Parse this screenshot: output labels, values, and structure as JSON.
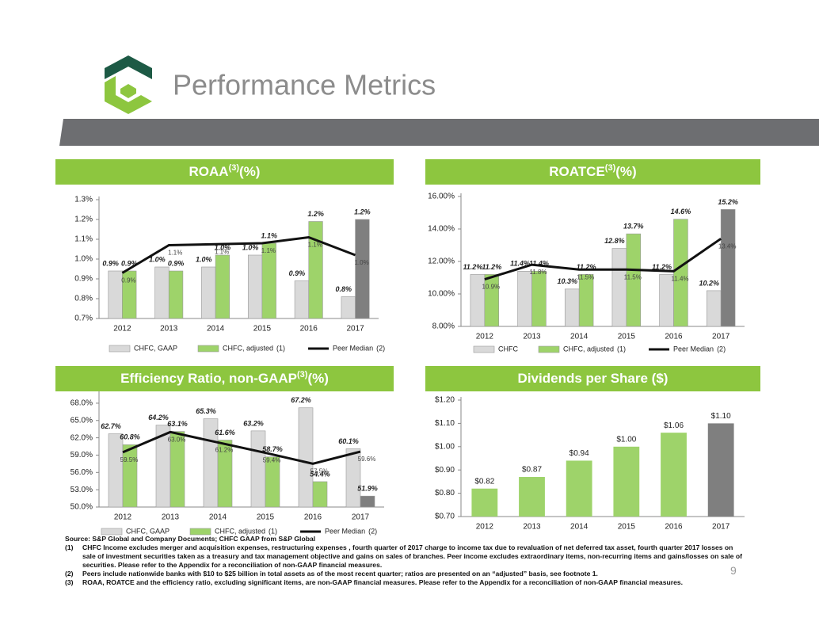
{
  "slide": {
    "title": "Performance Metrics",
    "page_number": "9",
    "source": "Source: S&P Global and Company Documents; CHFC GAAP from S&P Global",
    "footnotes": [
      {
        "marker": "(1)",
        "text": "CHFC Income excludes merger and acquisition expenses, restructuring expenses , fourth quarter of 2017 charge to income tax due to revaluation of net deferred tax asset, fourth quarter 2017 losses on sale of investment securities taken as a treasury and tax management objective and gains on sales of branches. Peer income excludes extraordinary items, non-recurring items and gains/losses on sale of securities. Please refer to the Appendix for a reconciliation of non-GAAP financial measures."
      },
      {
        "marker": "(2)",
        "text": "Peers include nationwide banks with $10 to $25 billion in total assets as of the most recent quarter; ratios are presented on an “adjusted” basis, see footnote 1."
      },
      {
        "marker": "(3)",
        "text": "ROAA, ROATCE and the efficiency ratio, excluding significant items, are non-GAAP financial measures.  Please refer to the Appendix for a reconciliation of non-GAAP financial measures."
      }
    ]
  },
  "chart_data": [
    {
      "type": "bar",
      "title": "ROAA",
      "title_note": "(3)",
      "title_suffix": "(%)",
      "categories": [
        "2012",
        "2013",
        "2014",
        "2015",
        "2016",
        "2017"
      ],
      "ylim": [
        0.7,
        1.3
      ],
      "yticks": [
        {
          "value": 0.7,
          "label": "0.7%"
        },
        {
          "value": 0.8,
          "label": "0.8%"
        },
        {
          "value": 0.9,
          "label": "0.9%"
        },
        {
          "value": 1.0,
          "label": "1.0%"
        },
        {
          "value": 1.1,
          "label": "1.1%"
        },
        {
          "value": 1.2,
          "label": "1.2%"
        },
        {
          "value": 1.3,
          "label": "1.3%"
        }
      ],
      "series": [
        {
          "name": "CHFC, GAAP",
          "color": "#d9d9d9",
          "values": [
            0.94,
            0.96,
            0.96,
            1.02,
            0.89,
            0.81
          ],
          "value_labels": [
            "0.9%",
            "1.0%",
            "1.0%",
            "1.0%",
            "0.9%",
            "0.8%"
          ]
        },
        {
          "name": "CHFC, adjusted",
          "note": "(1)",
          "color": "#9ed36a",
          "colors": [
            "#9ed36a",
            "#9ed36a",
            "#9ed36a",
            "#9ed36a",
            "#9ed36a",
            "#7f7f7f"
          ],
          "values": [
            0.94,
            0.94,
            1.02,
            1.08,
            1.19,
            1.2
          ],
          "value_labels": [
            "0.9%",
            "0.9%",
            "1.0%",
            "1.1%",
            "1.2%",
            "1.2%"
          ]
        },
        {
          "name": "Peer Median",
          "note": "(2)",
          "type": "line",
          "color": "#111111",
          "values": [
            0.93,
            1.07,
            1.075,
            1.08,
            1.11,
            1.02
          ],
          "value_labels": [
            "0.9%",
            "1.1%",
            "1.1%",
            "1.1%",
            "1.1%",
            "1.0%"
          ]
        }
      ]
    },
    {
      "type": "bar",
      "title": "ROATCE",
      "title_note": "(3)",
      "title_suffix": "(%)",
      "categories": [
        "2012",
        "2013",
        "2014",
        "2015",
        "2016",
        "2017"
      ],
      "ylim": [
        8,
        16
      ],
      "yticks": [
        {
          "value": 8,
          "label": "8.00%"
        },
        {
          "value": 10,
          "label": "10.00%"
        },
        {
          "value": 12,
          "label": "12.00%"
        },
        {
          "value": 14,
          "label": "14.00%"
        },
        {
          "value": 16,
          "label": "16.00%"
        }
      ],
      "series": [
        {
          "name": "CHFC",
          "color": "#d9d9d9",
          "values": [
            11.2,
            11.4,
            10.3,
            12.8,
            11.2,
            10.2
          ],
          "value_labels": [
            "11.2%",
            "11.4%",
            "10.3%",
            "12.8%",
            "11.2%",
            "10.2%"
          ]
        },
        {
          "name": "CHFC, adjusted",
          "note": "(1)",
          "color": "#9ed36a",
          "colors": [
            "#9ed36a",
            "#9ed36a",
            "#9ed36a",
            "#9ed36a",
            "#9ed36a",
            "#7f7f7f"
          ],
          "values": [
            11.2,
            11.4,
            11.2,
            13.7,
            14.6,
            15.2
          ],
          "value_labels": [
            "11.2%",
            "11.4%",
            "11.2%",
            "13.7%",
            "14.6%",
            "15.2%"
          ]
        },
        {
          "name": "Peer Median",
          "note": "(2)",
          "type": "line",
          "color": "#111111",
          "values": [
            10.9,
            11.8,
            11.5,
            11.5,
            11.4,
            13.4
          ],
          "value_labels": [
            "10.9%",
            "11.8%",
            "11.5%",
            "11.5%",
            "11.4%",
            "13.4%"
          ]
        }
      ]
    },
    {
      "type": "bar",
      "title": "Efficiency Ratio, non-GAAP",
      "title_note": "(3)",
      "title_suffix": "(%)",
      "categories": [
        "2012",
        "2013",
        "2014",
        "2015",
        "2016",
        "2017"
      ],
      "ylim": [
        50,
        69.5
      ],
      "yticks": [
        {
          "value": 50,
          "label": "50.0%"
        },
        {
          "value": 53,
          "label": "53.0%"
        },
        {
          "value": 56,
          "label": "56.0%"
        },
        {
          "value": 59,
          "label": "59.0%"
        },
        {
          "value": 62,
          "label": "62.0%"
        },
        {
          "value": 65,
          "label": "65.0%"
        },
        {
          "value": 68,
          "label": "68.0%"
        }
      ],
      "series": [
        {
          "name": "CHFC, GAAP",
          "color": "#d9d9d9",
          "values": [
            62.7,
            64.2,
            65.3,
            63.2,
            67.2,
            60.1
          ],
          "value_labels": [
            "62.7%",
            "64.2%",
            "65.3%",
            "63.2%",
            "67.2%",
            "60.1%"
          ]
        },
        {
          "name": "CHFC, adjusted",
          "note": "(1)",
          "color": "#9ed36a",
          "colors": [
            "#9ed36a",
            "#9ed36a",
            "#9ed36a",
            "#9ed36a",
            "#9ed36a",
            "#7f7f7f"
          ],
          "values": [
            60.8,
            63.1,
            61.6,
            58.7,
            54.4,
            51.9
          ],
          "value_labels": [
            "60.8%",
            "63.1%",
            "61.6%",
            "58.7%",
            "54.4%",
            "51.9%"
          ]
        },
        {
          "name": "Peer Median",
          "note": "(2)",
          "type": "line",
          "color": "#111111",
          "values": [
            59.5,
            63.0,
            61.2,
            59.4,
            57.5,
            59.6
          ],
          "value_labels": [
            "59.5%",
            "63.0%",
            "61.2%",
            "59.4%",
            "57.5%",
            "59.6%"
          ]
        }
      ]
    },
    {
      "type": "bar",
      "title": "Dividends per Share ($)",
      "categories": [
        "2012",
        "2013",
        "2014",
        "2015",
        "2016",
        "2017"
      ],
      "ylim": [
        0.7,
        1.2
      ],
      "yticks": [
        {
          "value": 0.7,
          "label": "$0.70"
        },
        {
          "value": 0.8,
          "label": "$0.80"
        },
        {
          "value": 0.9,
          "label": "$0.90"
        },
        {
          "value": 1.0,
          "label": "$1.00"
        },
        {
          "value": 1.1,
          "label": "$1.10"
        },
        {
          "value": 1.2,
          "label": "$1.20"
        }
      ],
      "color": "#9ed36a",
      "colors": [
        "#9ed36a",
        "#9ed36a",
        "#9ed36a",
        "#9ed36a",
        "#9ed36a",
        "#7f7f7f"
      ],
      "values": [
        0.82,
        0.87,
        0.94,
        1.0,
        1.06,
        1.1
      ],
      "value_labels": [
        "$0.82",
        "$0.87",
        "$0.94",
        "$1.00",
        "$1.06",
        "$1.10"
      ]
    }
  ]
}
